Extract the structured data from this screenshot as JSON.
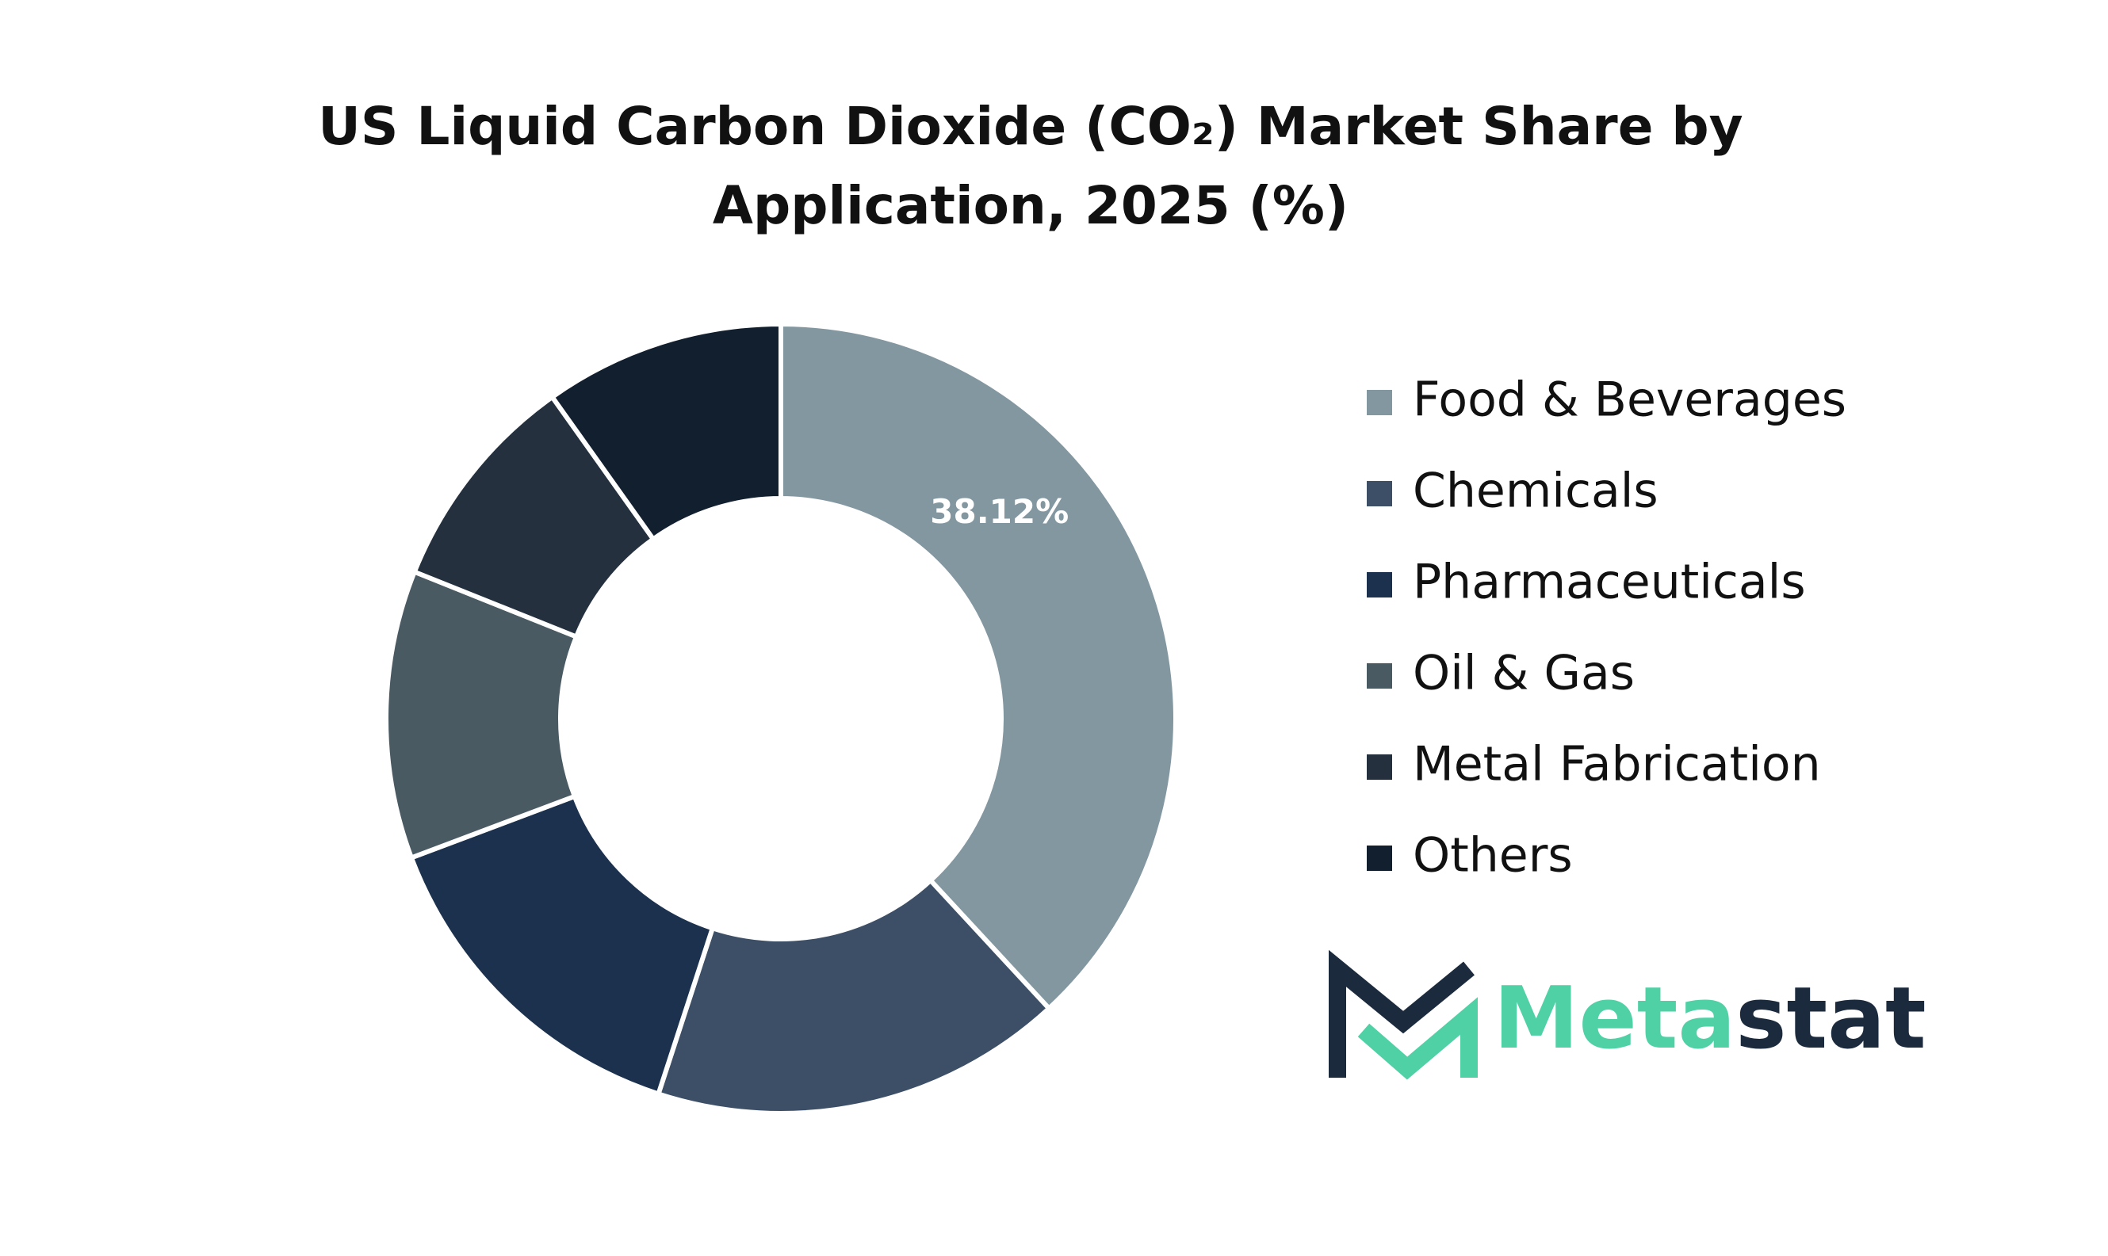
{
  "chart_data": {
    "type": "donut",
    "title": "US Liquid Carbon Dioxide (CO₂) Market Share by Application, 2025 (%)",
    "categories": [
      "Food & Beverages",
      "Chemicals",
      "Pharmaceuticals",
      "Oil & Gas",
      "Metal Fabrication",
      "Others"
    ],
    "values": [
      38.12,
      16.9,
      14.25,
      11.8,
      9.1,
      9.83
    ],
    "value_labels": [
      "38.12%",
      null,
      null,
      null,
      null,
      null
    ],
    "colors": [
      "#8397a1",
      "#3d4f66",
      "#1b314d",
      "#4a5a63",
      "#24303e",
      "#121f2e"
    ],
    "legend": "right"
  },
  "logo": [
    "Meta",
    "stat"
  ]
}
